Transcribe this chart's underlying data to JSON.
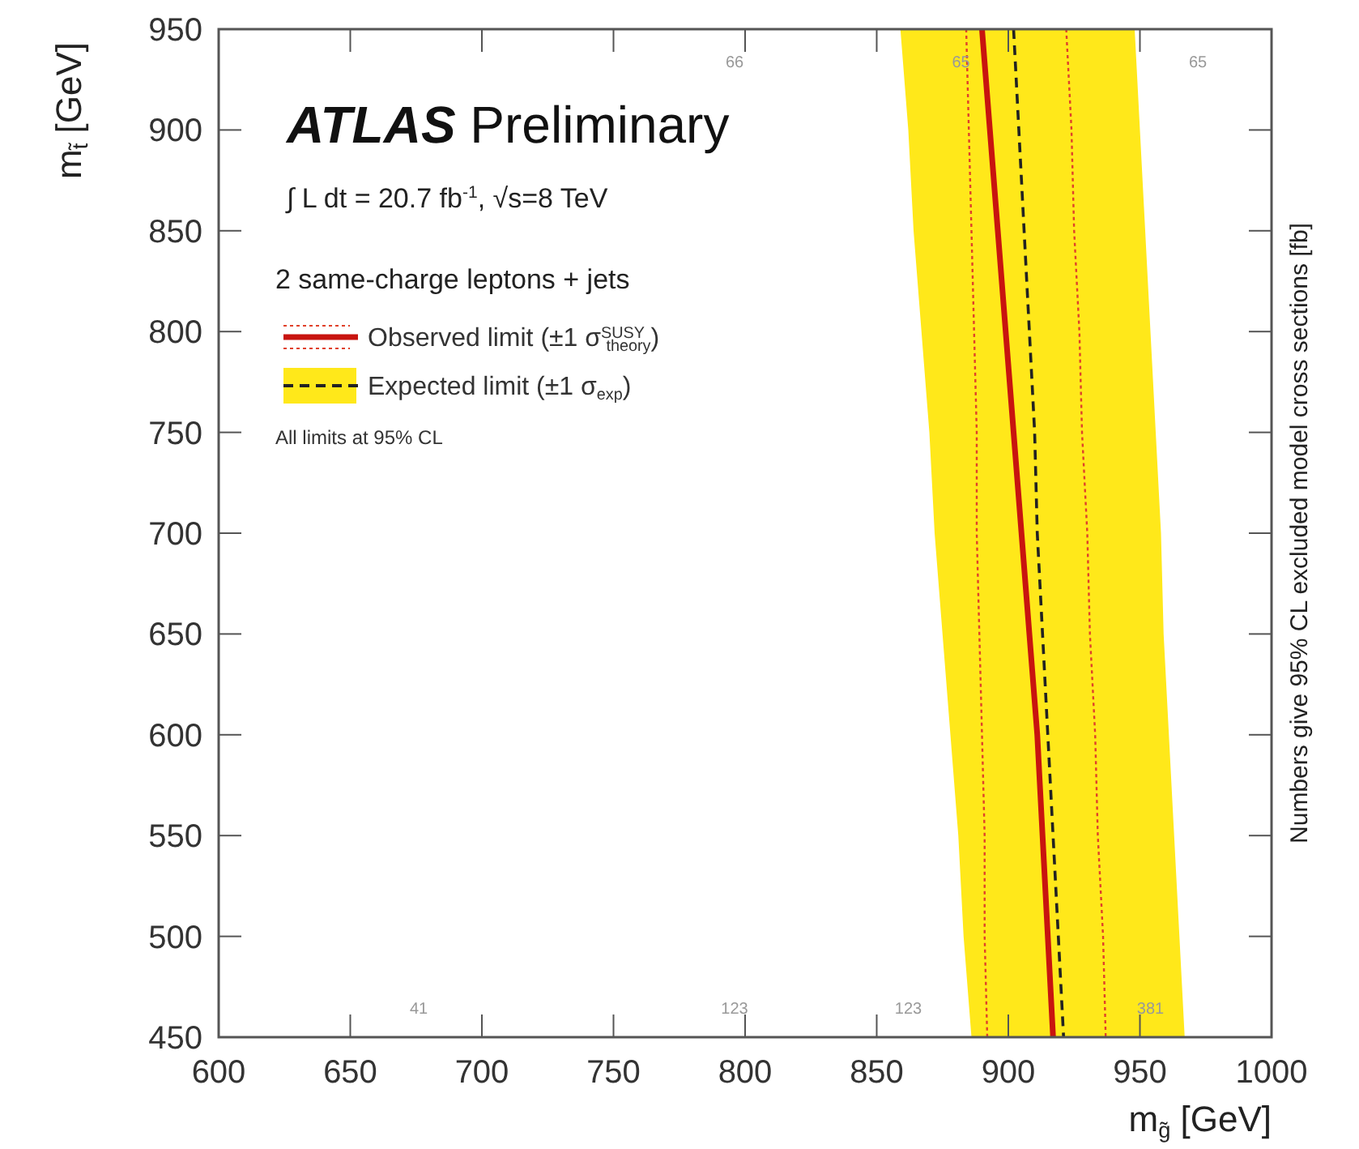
{
  "chart_data": {
    "type": "line",
    "title": "ATLAS Preliminary",
    "subtitle": "∫ L dt = 20.7 fb$^{-1}$, √s=8 TeV",
    "legend_title": "2 same-charge leptons + jets",
    "xlabel": "m$_{g̃}$ [GeV]",
    "ylabel": "m$_{t̃}$ [GeV]",
    "y2label": "Numbers give 95% CL excluded model cross sections [fb]",
    "xlim": [
      600,
      1000
    ],
    "xticks": [
      600,
      650,
      700,
      750,
      800,
      850,
      900,
      950,
      1000
    ],
    "ylim": [
      450,
      950
    ],
    "yticks": [
      450,
      500,
      550,
      600,
      650,
      700,
      750,
      800,
      850,
      900,
      950
    ],
    "grid": false,
    "legend": "top left",
    "marker": "none",
    "series": [
      {
        "type": "area",
        "color": "#ffe81a",
        "x": [
          859,
          862,
          864,
          867,
          870,
          872,
          875,
          878,
          881,
          883,
          886,
          967,
          965,
          963,
          961,
          959,
          958,
          956,
          954,
          952,
          950,
          948
        ],
        "values": [
          950,
          900,
          850,
          800,
          750,
          700,
          650,
          600,
          550,
          500,
          450,
          450,
          500,
          550,
          600,
          650,
          700,
          750,
          800,
          850,
          900,
          950
        ]
      },
      {
        "color": "#e0402a",
        "line_style": "dotted",
        "x": [
          884,
          885,
          886,
          887,
          888,
          888,
          889,
          890,
          891,
          891,
          892
        ],
        "values": [
          950,
          900,
          850,
          800,
          750,
          700,
          650,
          600,
          550,
          500,
          450
        ]
      },
      {
        "color": "#e0402a",
        "line_style": "dotted",
        "x": [
          922,
          924,
          925,
          927,
          928,
          930,
          931,
          933,
          934,
          936,
          937
        ],
        "values": [
          950,
          900,
          850,
          800,
          750,
          700,
          650,
          600,
          550,
          500,
          450
        ]
      },
      {
        "name": "Expected limit (±1 σ$_{exp}$)",
        "color": "#222222",
        "line_style": "dashed",
        "x": [
          902,
          904,
          906,
          908,
          910,
          911,
          913,
          915,
          917,
          919,
          921
        ],
        "values": [
          950,
          900,
          850,
          800,
          750,
          700,
          650,
          600,
          550,
          500,
          450
        ]
      },
      {
        "name": "Observed limit (±1 σ$^{SUSY}$$_{theory}$)",
        "color": "#c8140f",
        "line_style": "solid",
        "x": [
          890,
          893,
          896,
          899,
          902,
          905,
          908,
          911,
          913,
          915,
          917
        ],
        "values": [
          950,
          900,
          850,
          800,
          750,
          700,
          650,
          600,
          550,
          500,
          450
        ]
      }
    ],
    "annotations": [
      "All limits at 95% CL",
      "41",
      "123",
      "123",
      "381",
      "66",
      "65",
      "65"
    ]
  }
}
